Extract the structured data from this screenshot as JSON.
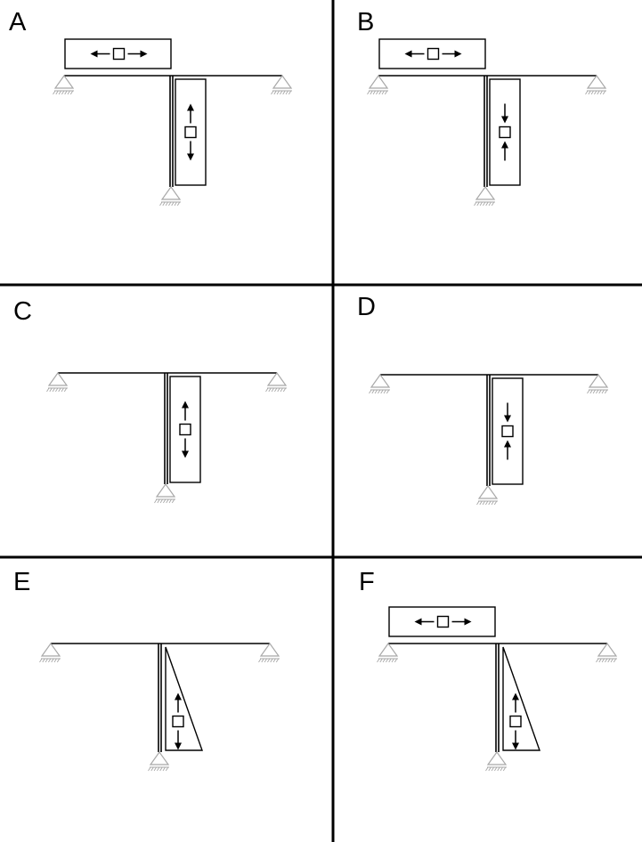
{
  "panels": [
    {
      "id": "A",
      "label": "A",
      "axial_beam": "tension",
      "axial_column": "tension",
      "column_shape": "rectangle"
    },
    {
      "id": "B",
      "label": "B",
      "axial_beam": "tension",
      "axial_column": "compression",
      "column_shape": "rectangle"
    },
    {
      "id": "C",
      "label": "C",
      "axial_beam": "none",
      "axial_column": "tension",
      "column_shape": "rectangle"
    },
    {
      "id": "D",
      "label": "D",
      "axial_beam": "none",
      "axial_column": "compression",
      "column_shape": "rectangle"
    },
    {
      "id": "E",
      "label": "E",
      "axial_beam": "none",
      "axial_column": "tension",
      "column_shape": "triangle"
    },
    {
      "id": "F",
      "label": "F",
      "axial_beam": "tension",
      "axial_column": "tension",
      "column_shape": "triangle"
    }
  ],
  "colors": {
    "line": "#000000",
    "support": "#a8a8a8",
    "background": "#ffffff"
  }
}
